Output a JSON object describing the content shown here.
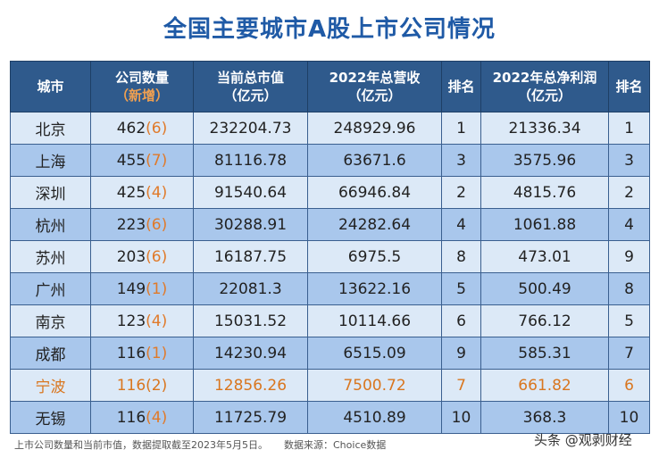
{
  "title": "全国主要城市A股上市公司情况",
  "headers": {
    "city": "城市",
    "count_line1": "公司数量",
    "count_line2": "（新增）",
    "cap_line1": "当前总市值",
    "cap_line2": "（亿元）",
    "rev_line1": "2022年总营收",
    "rev_line2": "（亿元）",
    "rank1": "排名",
    "profit_line1": "2022年总净利润",
    "profit_line2": "（亿元）",
    "rank2": "排名"
  },
  "rows": [
    {
      "city": "北京",
      "count": "462",
      "added": "(6)",
      "cap": "232204.73",
      "rev": "248929.96",
      "rev_rank": "1",
      "profit": "21336.34",
      "profit_rank": "1"
    },
    {
      "city": "上海",
      "count": "455",
      "added": "(7)",
      "cap": "81116.78",
      "rev": "63671.6",
      "rev_rank": "3",
      "profit": "3575.96",
      "profit_rank": "3"
    },
    {
      "city": "深圳",
      "count": "425",
      "added": "(4)",
      "cap": "91540.64",
      "rev": "66946.84",
      "rev_rank": "2",
      "profit": "4815.76",
      "profit_rank": "2"
    },
    {
      "city": "杭州",
      "count": "223",
      "added": "(6)",
      "cap": "30288.91",
      "rev": "24282.64",
      "rev_rank": "4",
      "profit": "1061.88",
      "profit_rank": "4"
    },
    {
      "city": "苏州",
      "count": "203",
      "added": "(6)",
      "cap": "16187.75",
      "rev": "6975.5",
      "rev_rank": "8",
      "profit": "473.01",
      "profit_rank": "9"
    },
    {
      "city": "广州",
      "count": "149",
      "added": "(1)",
      "cap": "22081.3",
      "rev": "13622.16",
      "rev_rank": "5",
      "profit": "500.49",
      "profit_rank": "8"
    },
    {
      "city": "南京",
      "count": "123",
      "added": "(4)",
      "cap": "15031.52",
      "rev": "10114.66",
      "rev_rank": "6",
      "profit": "766.12",
      "profit_rank": "5"
    },
    {
      "city": "成都",
      "count": "116",
      "added": "(1)",
      "cap": "14230.94",
      "rev": "6515.09",
      "rev_rank": "9",
      "profit": "585.31",
      "profit_rank": "7"
    },
    {
      "city": "宁波",
      "count": "116",
      "added": "(2)",
      "cap": "12856.26",
      "rev": "7500.72",
      "rev_rank": "7",
      "profit": "661.82",
      "profit_rank": "6"
    },
    {
      "city": "无锡",
      "count": "116",
      "added": "(4)",
      "cap": "11725.79",
      "rev": "4510.89",
      "rev_rank": "10",
      "profit": "368.3",
      "profit_rank": "10"
    }
  ],
  "highlight_city": "宁波",
  "footer": {
    "note": "上市公司数量和当前市值，数据提取截至2023年5月5日。",
    "source": "数据来源：Choice数据"
  },
  "watermark": "头条 @观剥财经",
  "colors": {
    "header_bg": "#2f5a8c",
    "row_light": "#dce9f7",
    "row_dark": "#a9c7ec",
    "title": "#1f5aa6",
    "accent_orange": "#e07a2a"
  }
}
